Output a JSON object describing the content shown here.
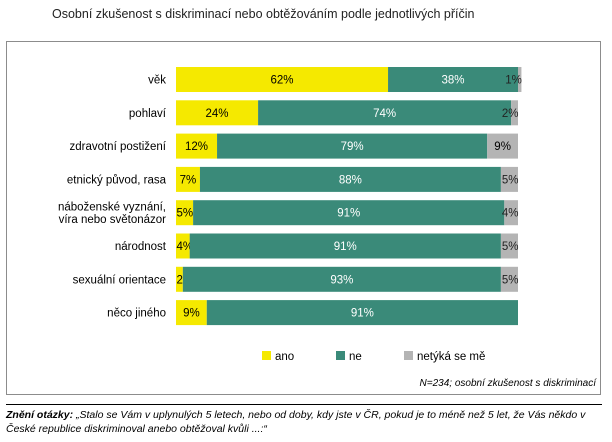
{
  "chart_data": {
    "type": "bar",
    "orientation": "horizontal",
    "stacked": true,
    "percent_stacked": true,
    "title": "Osobní zkušenost s diskriminací nebo obtěžováním podle jednotlivých příčin",
    "categories": [
      [
        "věk"
      ],
      [
        "pohlaví"
      ],
      [
        "zdravotní postižení"
      ],
      [
        "etnický původ, rasa"
      ],
      [
        "náboženské vyznání,",
        "víra nebo světonázor"
      ],
      [
        "národnost"
      ],
      [
        "sexuální orientace"
      ],
      [
        "něco jiného"
      ]
    ],
    "series": [
      {
        "name": "ano",
        "color": "#f5e900",
        "values": [
          62,
          24,
          12,
          7,
          5,
          4,
          2,
          9
        ]
      },
      {
        "name": "ne",
        "color": "#3a8a79",
        "values": [
          38,
          74,
          79,
          88,
          91,
          91,
          93,
          91
        ]
      },
      {
        "name": "netýká se mě",
        "color": "#b4b4b4",
        "values": [
          1,
          2,
          9,
          5,
          4,
          5,
          5,
          null
        ]
      }
    ],
    "value_suffix": "%",
    "legend_position": "bottom",
    "grid": false,
    "note": "N=234; osobní zkušenost s diskriminací"
  },
  "footer": {
    "label": "Znění otázky:",
    "text": " „Stalo se Vám v uplynulých 5 letech, nebo od doby, kdy jste v ČR, pokud je to méně než 5 let, že Vás někdo v České republice diskriminoval anebo obtěžoval kvůli ...:“"
  }
}
